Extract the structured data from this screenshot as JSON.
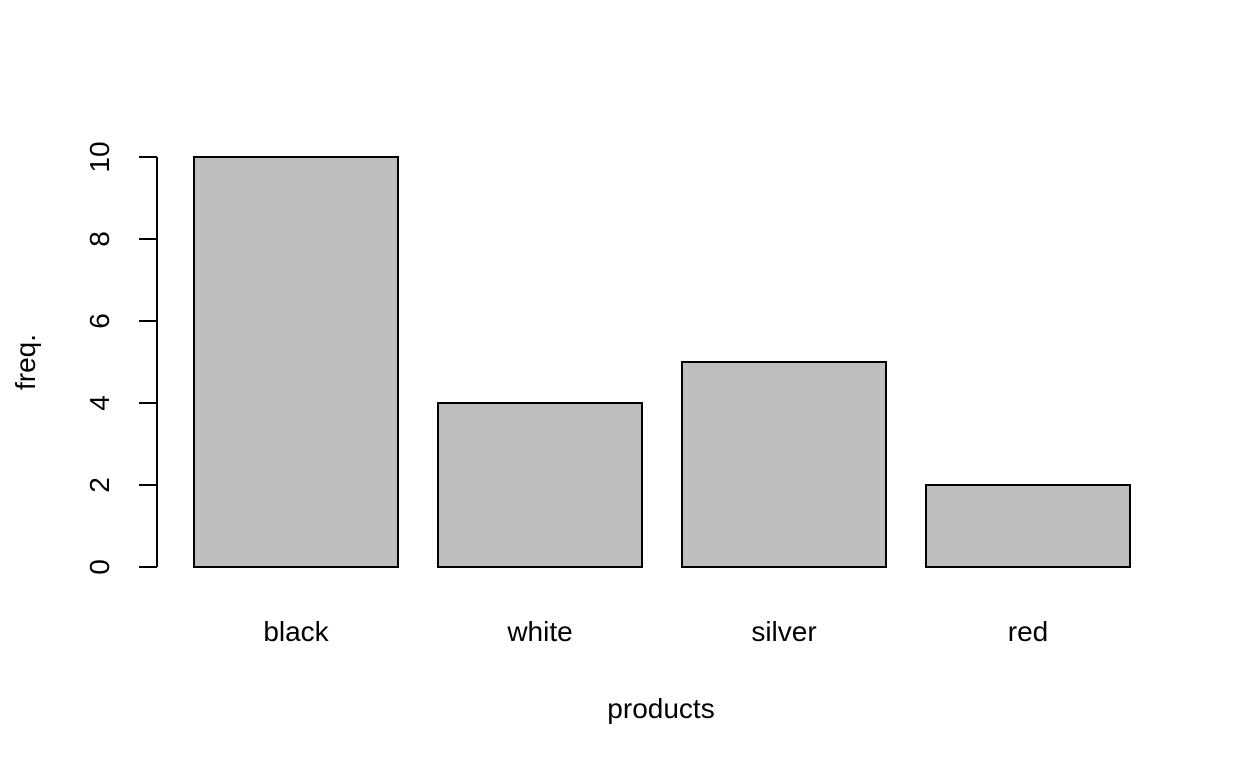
{
  "chart_data": {
    "type": "bar",
    "title": "",
    "xlabel": "products",
    "ylabel": "freq.",
    "categories": [
      "black",
      "white",
      "silver",
      "red"
    ],
    "values": [
      10,
      4,
      5,
      2
    ],
    "ylim": [
      0,
      10
    ],
    "yticks": [
      0,
      2,
      4,
      6,
      8,
      10
    ],
    "grid": false,
    "bar_color": "#bebebe",
    "edge_color": "#000000"
  }
}
